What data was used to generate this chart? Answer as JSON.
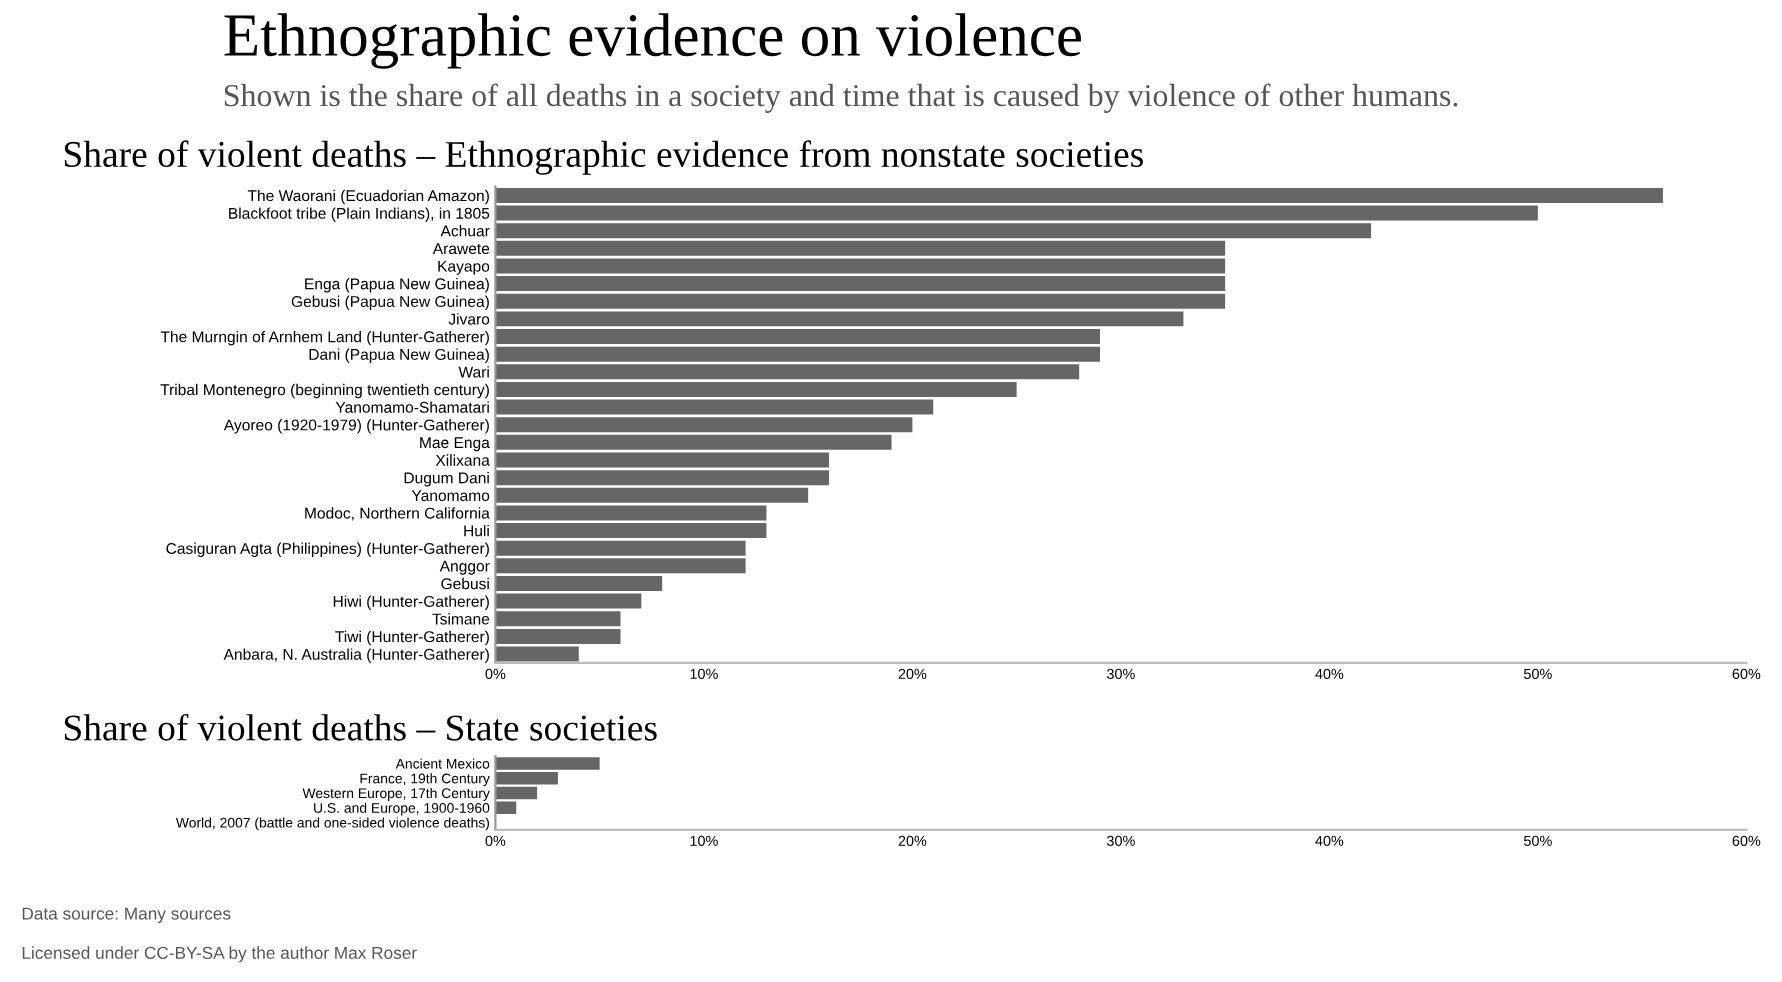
{
  "chart_data": [
    {
      "type": "bar",
      "orientation": "horizontal",
      "title": "Share of violent deaths – Ethnographic evidence from nonstate societies",
      "annotations": [
        "Ethnographic evidence on violence",
        "Shown is the share of all deaths in a society and time that is caused by violence of other humans."
      ],
      "categories": [
        "The Waorani (Ecuadorian Amazon)",
        "Blackfoot tribe (Plain Indians), in 1805",
        "Achuar",
        "Arawete",
        "Kayapo",
        "Enga (Papua New Guinea)",
        "Gebusi (Papua New Guinea)",
        "Jivaro",
        "The Murngin of Arnhem Land (Hunter-Gatherer)",
        "Dani (Papua New Guinea)",
        "Wari",
        "Tribal Montenegro (beginning twentieth century)",
        "Yanomamo-Shamatari",
        "Ayoreo (1920-1979) (Hunter-Gatherer)",
        "Mae Enga",
        "Xilixana",
        "Dugum Dani",
        "Yanomamo",
        "Modoc, Northern California",
        "Huli",
        "Casiguran Agta (Philippines) (Hunter-Gatherer)",
        "Anggor",
        "Gebusi",
        "Hiwi (Hunter-Gatherer)",
        "Tsimane",
        "Tiwi (Hunter-Gatherer)",
        "Anbara, N. Australia (Hunter-Gatherer)"
      ],
      "values": [
        56,
        50,
        42,
        35,
        35,
        35,
        35,
        33,
        29,
        29,
        28,
        25,
        21,
        20,
        19,
        16,
        16,
        15,
        13,
        13,
        12,
        12,
        8,
        7,
        6,
        6,
        4
      ],
      "color": "#666666",
      "xlim": [
        0,
        60
      ],
      "xticks": [
        {
          "value": 0,
          "label": "0%"
        },
        {
          "value": 10,
          "label": "10%"
        },
        {
          "value": 20,
          "label": "20%"
        },
        {
          "value": 30,
          "label": "30%"
        },
        {
          "value": 40,
          "label": "40%"
        },
        {
          "value": 50,
          "label": "50%"
        },
        {
          "value": 60,
          "label": "60%"
        }
      ],
      "grid": false,
      "legend": false
    },
    {
      "type": "bar",
      "orientation": "horizontal",
      "title": "Share of violent deaths – State societies",
      "annotations": [
        "Data source: Many sources",
        "Licensed under CC-BY-SA by the author Max Roser"
      ],
      "categories": [
        "Ancient Mexico",
        "France, 19th Century",
        "Western Europe, 17th Century",
        "U.S. and Europe, 1900-1960",
        "World, 2007 (battle and one-sided violence deaths)"
      ],
      "values": [
        5,
        3,
        2,
        1,
        0
      ],
      "color": "#666666",
      "xlim": [
        0,
        60
      ],
      "xticks": [
        {
          "value": 0,
          "label": "0%"
        },
        {
          "value": 10,
          "label": "10%"
        },
        {
          "value": 20,
          "label": "20%"
        },
        {
          "value": 30,
          "label": "30%"
        },
        {
          "value": 40,
          "label": "40%"
        },
        {
          "value": 50,
          "label": "50%"
        },
        {
          "value": 60,
          "label": "60%"
        }
      ],
      "grid": false,
      "legend": false
    }
  ]
}
